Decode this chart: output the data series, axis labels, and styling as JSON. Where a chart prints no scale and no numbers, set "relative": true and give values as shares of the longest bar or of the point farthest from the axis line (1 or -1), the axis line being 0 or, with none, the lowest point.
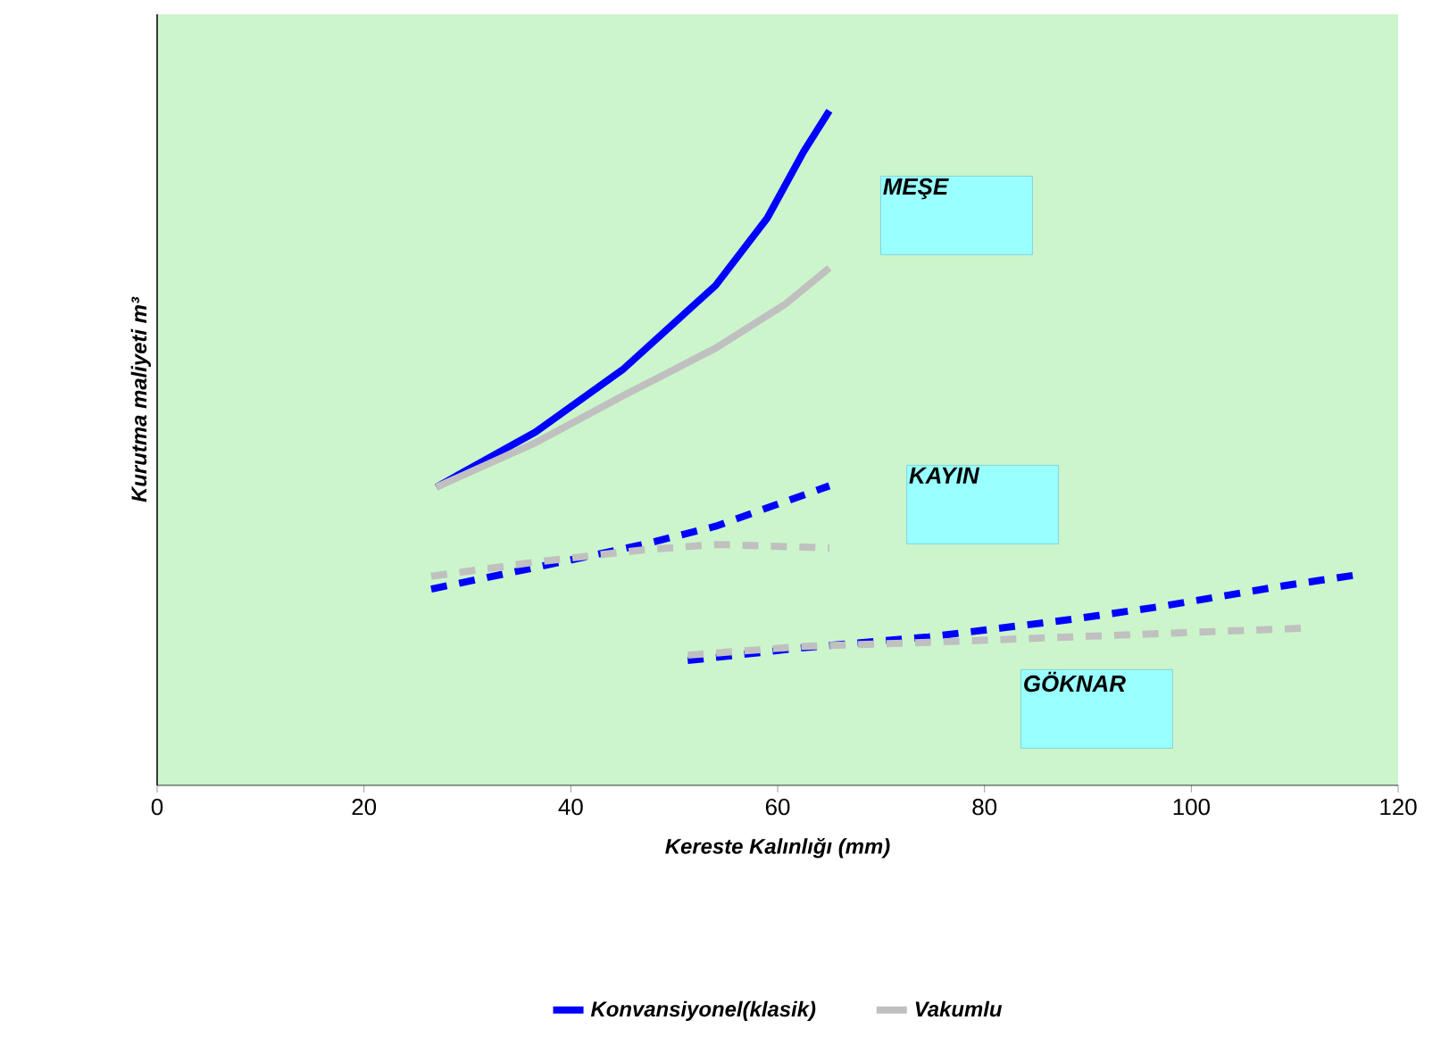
{
  "chart_data": {
    "type": "line",
    "relative": true,
    "xlabel": "Kereste Kalınlığı  (mm)",
    "ylabel": "Kurutma maliyeti  m³",
    "xlim": [
      0,
      120
    ],
    "xticks": [
      0,
      20,
      40,
      60,
      80,
      100,
      120
    ],
    "legend": "bottom",
    "grid": false,
    "series": [
      {
        "name": "Konvansiyonel(klasik)",
        "color": "#0000ff",
        "line_style": "solid",
        "x": [
          27,
          36.6,
          45,
          54,
          59,
          62.5,
          65
        ],
        "values": [
          0.442,
          0.524,
          0.616,
          0.741,
          0.841,
          0.939,
          1.0
        ]
      },
      {
        "name": "Vakumlu",
        "color": "#c0c0c0",
        "line_style": "solid",
        "x": [
          27,
          36.6,
          45,
          54,
          60.8,
          65
        ],
        "values": [
          0.442,
          0.508,
          0.577,
          0.648,
          0.714,
          0.767
        ]
      },
      {
        "color": "#0000ff",
        "line_style": "dashed",
        "x": [
          26.5,
          36.6,
          47,
          54,
          65
        ],
        "values": [
          0.291,
          0.323,
          0.357,
          0.384,
          0.444
        ]
      },
      {
        "color": "#c0c0c0",
        "line_style": "dashed",
        "x": [
          26.5,
          36.6,
          47,
          54,
          60.8,
          65
        ],
        "values": [
          0.31,
          0.331,
          0.349,
          0.357,
          0.354,
          0.352
        ]
      },
      {
        "color": "#0000ff",
        "line_style": "dashed",
        "x": [
          51.3,
          62.5,
          74.6,
          88.4,
          97,
          109,
          116
        ],
        "values": [
          0.185,
          0.204,
          0.22,
          0.246,
          0.265,
          0.296,
          0.312
        ]
      },
      {
        "color": "#c0c0c0",
        "line_style": "dashed",
        "x": [
          51.3,
          62.5,
          74.6,
          88.4,
          97,
          111
        ],
        "values": [
          0.193,
          0.206,
          0.212,
          0.22,
          0.225,
          0.233
        ]
      }
    ],
    "annotations": [
      "MEŞE",
      "KAYIN",
      "GÖKNAR"
    ]
  }
}
